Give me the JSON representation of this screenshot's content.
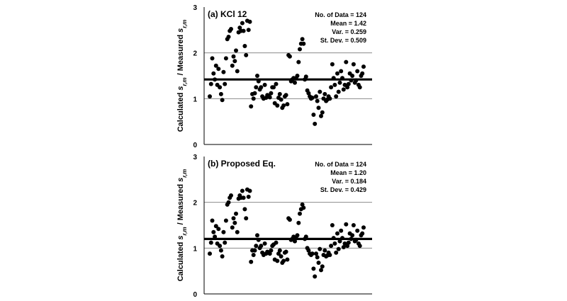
{
  "chart_data": [
    {
      "type": "scatter",
      "title": "(a) KCl 12",
      "ylabel": {
        "prefix": "Calculated ",
        "s": "s",
        "sub": "r,m",
        "mid": " / Measured "
      },
      "ylim": [
        0,
        3
      ],
      "yticks": [
        "0",
        "1",
        "2",
        "3"
      ],
      "grid": "horizontal",
      "mean_line": 1.42,
      "stats": [
        "No. of Data = 124",
        "Mean = 1.42",
        "Var. = 0.259",
        "St. Dev. = 0.509"
      ],
      "x": [
        1,
        2,
        3,
        4,
        5,
        6,
        7,
        8,
        9,
        10,
        11,
        12,
        13,
        14,
        15,
        16,
        17,
        18,
        19,
        20,
        21,
        22,
        23,
        24,
        25,
        26,
        27,
        28,
        29,
        30,
        31,
        32,
        33,
        34,
        35,
        36,
        37,
        38,
        39,
        40,
        41,
        42,
        43,
        44,
        45,
        46,
        47,
        48,
        49,
        50,
        51,
        52,
        53,
        54,
        55,
        56,
        57,
        58,
        59,
        60,
        61,
        62,
        63,
        64,
        65,
        66,
        67,
        68,
        69,
        70,
        71,
        72,
        73,
        74,
        75,
        76,
        77,
        78,
        79,
        80,
        81,
        82,
        83,
        84,
        85,
        86,
        87,
        88,
        89,
        90,
        91,
        92,
        93,
        94,
        95,
        96,
        97,
        98,
        99,
        100,
        101,
        102,
        103,
        104,
        105,
        106,
        107,
        108,
        109,
        110,
        111,
        112,
        113,
        114,
        115,
        116,
        117,
        118,
        119,
        120,
        121,
        122,
        123,
        124
      ],
      "values": [
        1.05,
        1.32,
        1.88,
        1.55,
        1.42,
        1.72,
        1.3,
        1.65,
        1.25,
        1.1,
        0.97,
        1.58,
        1.32,
        1.88,
        2.3,
        2.35,
        2.48,
        2.52,
        1.72,
        1.92,
        1.82,
        2.05,
        1.6,
        2.45,
        2.55,
        2.48,
        2.65,
        2.48,
        2.15,
        1.95,
        2.7,
        2.5,
        2.68,
        0.83,
        1.1,
        1.0,
        1.12,
        1.25,
        1.5,
        1.38,
        1.2,
        1.25,
        1.05,
        1.0,
        1.3,
        1.02,
        1.08,
        1.05,
        1.03,
        1.12,
        1.25,
        1.25,
        0.9,
        1.32,
        0.85,
        1.02,
        1.1,
        0.98,
        0.8,
        0.85,
        1.05,
        1.08,
        0.88,
        1.95,
        1.92,
        1.38,
        1.42,
        1.45,
        1.35,
        1.45,
        1.5,
        1.8,
        2.08,
        2.2,
        2.3,
        2.2,
        1.42,
        1.48,
        1.18,
        1.12,
        1.05,
        1.0,
        1.02,
        0.65,
        0.45,
        1.05,
        0.95,
        0.8,
        1.15,
        0.62,
        0.7,
        1.0,
        1.1,
        0.95,
        0.98,
        1.05,
        1.0,
        1.25,
        1.75,
        1.45,
        1.3,
        1.05,
        1.55,
        1.15,
        1.35,
        1.6,
        1.45,
        1.2,
        1.3,
        1.8,
        1.25,
        1.32,
        1.55,
        1.4,
        1.5,
        1.75,
        1.35,
        1.4,
        1.6,
        1.3,
        1.25,
        1.5,
        1.55,
        1.7
      ]
    },
    {
      "type": "scatter",
      "title": "(b) Proposed Eq.",
      "ylabel": {
        "prefix": "Calculated ",
        "s": "s",
        "sub": "r,m",
        "mid": " / Measured "
      },
      "ylim": [
        0,
        3
      ],
      "yticks": [
        "0",
        "1",
        "2",
        "3"
      ],
      "grid": "horizontal",
      "mean_line": 1.2,
      "stats": [
        "No. of Data = 124",
        "Mean = 1.20",
        "Var. = 0.184",
        "St. Dev. = 0.429"
      ],
      "x": [
        1,
        2,
        3,
        4,
        5,
        6,
        7,
        8,
        9,
        10,
        11,
        12,
        13,
        14,
        15,
        16,
        17,
        18,
        19,
        20,
        21,
        22,
        23,
        24,
        25,
        26,
        27,
        28,
        29,
        30,
        31,
        32,
        33,
        34,
        35,
        36,
        37,
        38,
        39,
        40,
        41,
        42,
        43,
        44,
        45,
        46,
        47,
        48,
        49,
        50,
        51,
        52,
        53,
        54,
        55,
        56,
        57,
        58,
        59,
        60,
        61,
        62,
        63,
        64,
        65,
        66,
        67,
        68,
        69,
        70,
        71,
        72,
        73,
        74,
        75,
        76,
        77,
        78,
        79,
        80,
        81,
        82,
        83,
        84,
        85,
        86,
        87,
        88,
        89,
        90,
        91,
        92,
        93,
        94,
        95,
        96,
        97,
        98,
        99,
        100,
        101,
        102,
        103,
        104,
        105,
        106,
        107,
        108,
        109,
        110,
        111,
        112,
        113,
        114,
        115,
        116,
        117,
        118,
        119,
        120,
        121,
        122,
        123,
        124
      ],
      "values": [
        0.88,
        1.12,
        1.6,
        1.35,
        1.25,
        1.48,
        1.1,
        1.42,
        1.05,
        0.95,
        0.82,
        1.35,
        1.12,
        1.6,
        1.95,
        2.0,
        2.1,
        2.15,
        1.45,
        1.65,
        1.55,
        1.75,
        1.35,
        2.08,
        2.15,
        2.1,
        2.25,
        2.1,
        1.85,
        1.65,
        2.28,
        2.12,
        2.25,
        0.7,
        0.95,
        0.85,
        0.95,
        1.05,
        1.28,
        1.18,
        1.0,
        1.05,
        0.9,
        0.85,
        1.1,
        0.88,
        0.92,
        0.9,
        0.88,
        0.95,
        1.05,
        1.08,
        0.75,
        1.12,
        0.72,
        0.88,
        0.95,
        0.82,
        0.68,
        0.72,
        0.9,
        0.92,
        0.75,
        1.65,
        1.62,
        1.18,
        1.2,
        1.25,
        1.15,
        1.22,
        1.28,
        1.55,
        1.75,
        1.85,
        1.95,
        1.88,
        1.2,
        1.25,
        1.0,
        0.95,
        0.88,
        0.85,
        0.88,
        0.55,
        0.38,
        0.88,
        0.8,
        0.68,
        0.98,
        0.52,
        0.6,
        0.85,
        0.95,
        0.82,
        0.84,
        0.9,
        0.85,
        1.05,
        1.5,
        1.22,
        1.1,
        0.9,
        1.32,
        0.98,
        1.15,
        1.38,
        1.22,
        1.02,
        1.1,
        1.52,
        1.05,
        1.12,
        1.32,
        1.2,
        1.28,
        1.5,
        1.15,
        1.18,
        1.38,
        1.1,
        1.05,
        1.28,
        1.32,
        1.45
      ]
    }
  ]
}
